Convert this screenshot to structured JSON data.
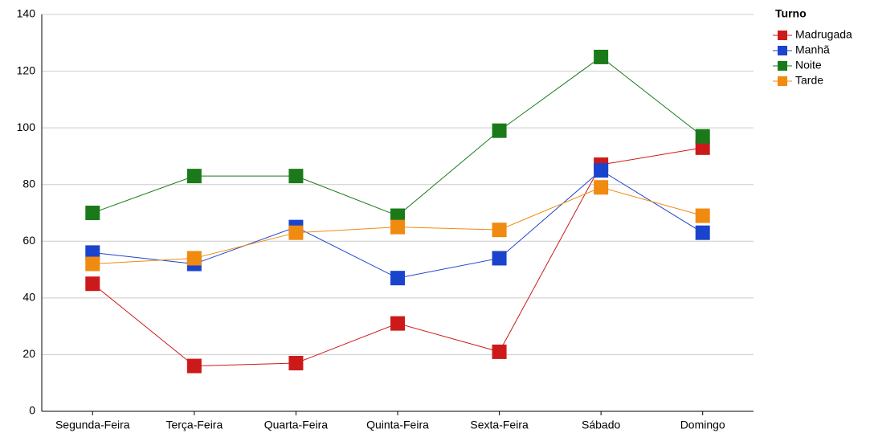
{
  "chart_data": {
    "type": "line",
    "categories": [
      "Segunda-Feira",
      "Terça-Feira",
      "Quarta-Feira",
      "Quinta-Feira",
      "Sexta-Feira",
      "Sábado",
      "Domingo"
    ],
    "series": [
      {
        "name": "Madrugada",
        "color": "#cc1a1a",
        "values": [
          45,
          16,
          17,
          31,
          21,
          87,
          93
        ]
      },
      {
        "name": "Manhã",
        "color": "#1a44cc",
        "values": [
          56,
          52,
          65,
          47,
          54,
          85,
          63
        ]
      },
      {
        "name": "Noite",
        "color": "#1a7a1a",
        "values": [
          70,
          83,
          83,
          69,
          99,
          125,
          97
        ]
      },
      {
        "name": "Tarde",
        "color": "#f08a10",
        "values": [
          52,
          54,
          63,
          65,
          64,
          79,
          69
        ]
      }
    ],
    "ylim": [
      0,
      140
    ],
    "yticks": [
      0,
      20,
      40,
      60,
      80,
      100,
      120,
      140
    ],
    "grid": true,
    "legend_title": "Turno",
    "legend": "right"
  }
}
